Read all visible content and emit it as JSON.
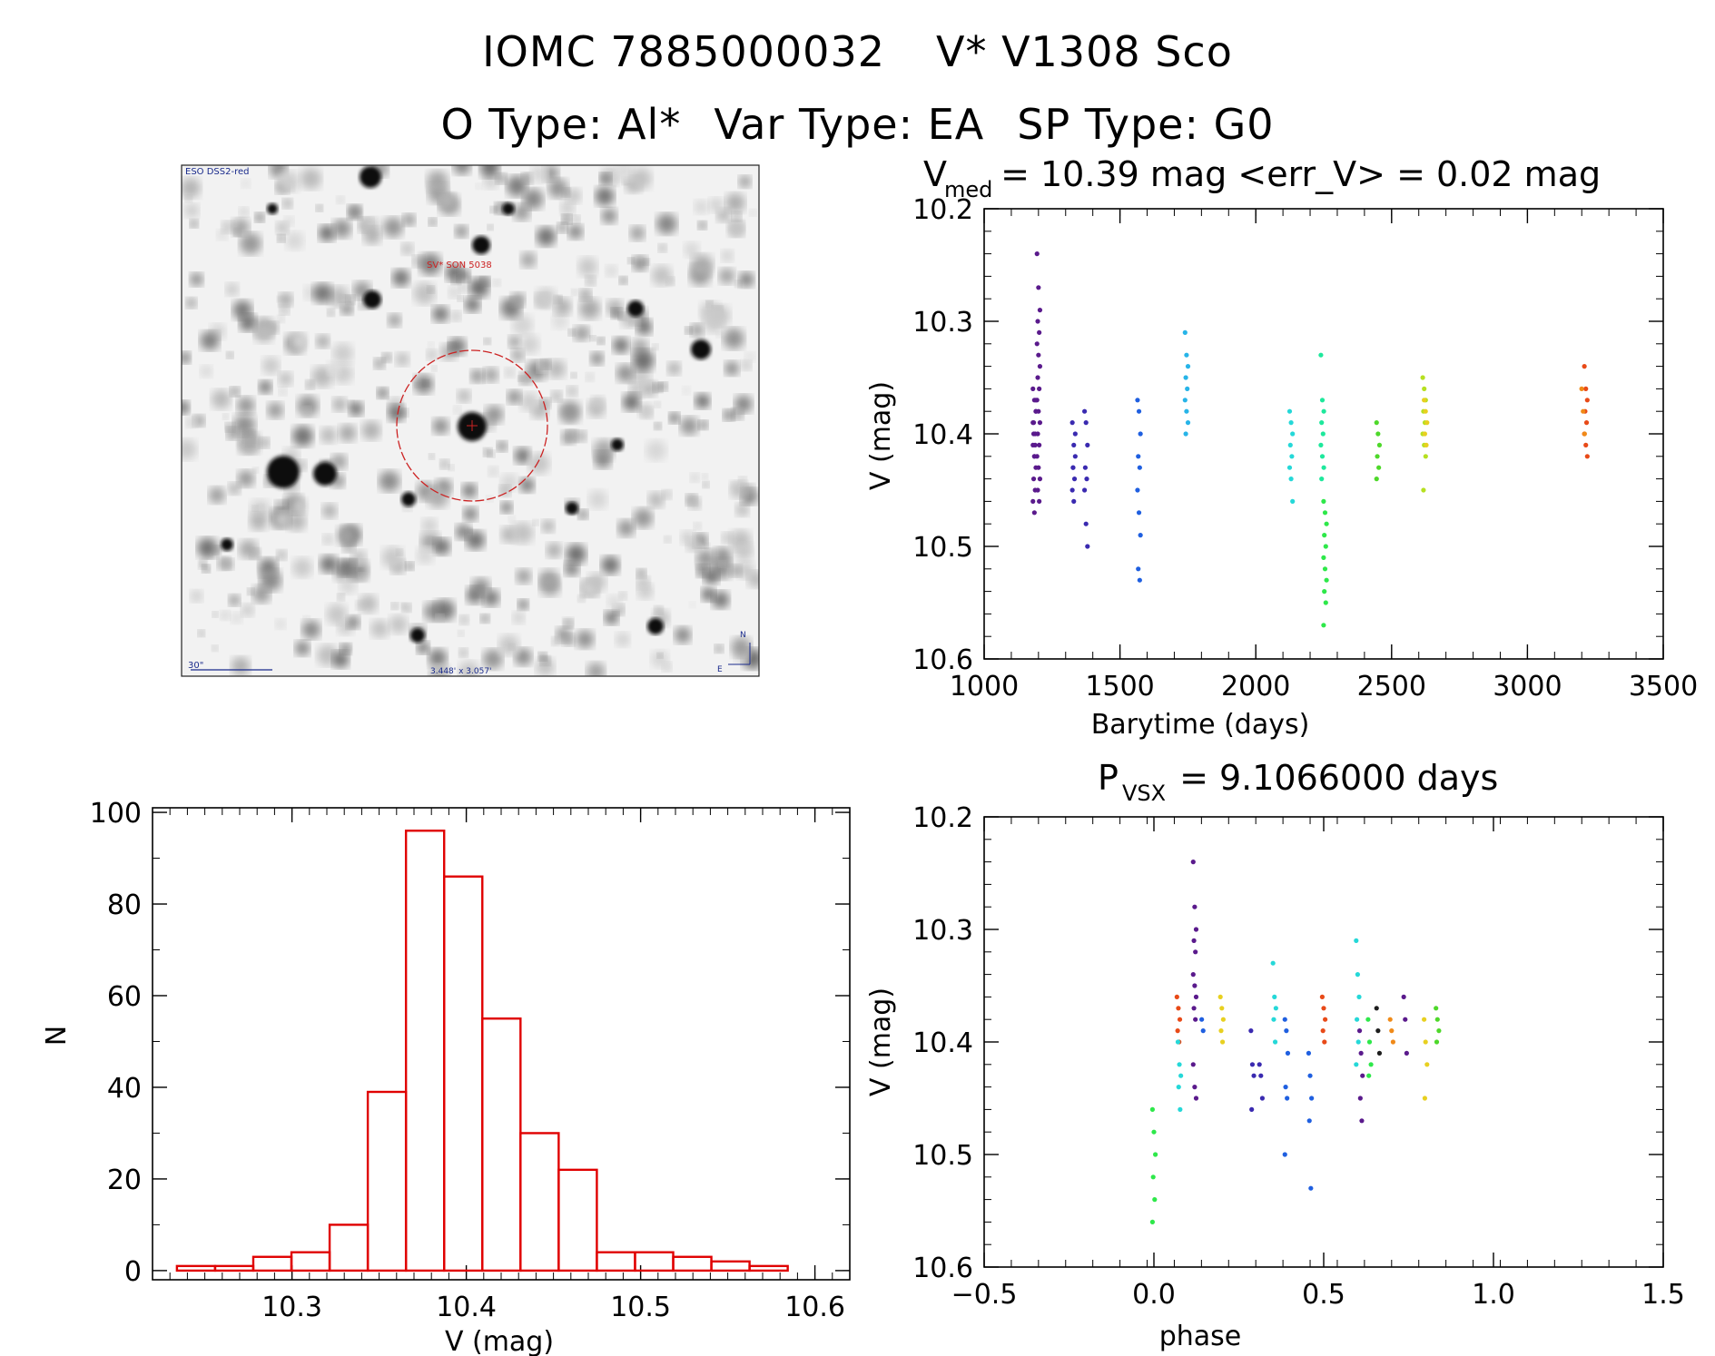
{
  "header": {
    "id": "IOMC 7885000032",
    "name": "V* V1308 Sco",
    "otype": "O Type: Al*",
    "vartype": "Var Type: EA",
    "sptype": "SP Type: G0"
  },
  "sky_image": {
    "survey_label": "ESO DSS2-red",
    "object_label": "SV* SON 5038",
    "scale_label": "30\"",
    "fov_label": "3.448' x 3.057'",
    "north_label": "N",
    "east_label": "E",
    "circle_color": "#cc2222"
  },
  "chart_data": [
    {
      "type": "scatter",
      "id": "lightcurve",
      "title_main": "V",
      "title_sub": "med",
      "title_rest": " = 10.39 mag <err_V> = 0.02 mag",
      "xlabel": "Barytime (days)",
      "ylabel": "V (mag)",
      "xlim": [
        1000,
        3500
      ],
      "ylim": [
        10.2,
        10.6
      ],
      "y_inverted": true,
      "xticks": [
        1000,
        1500,
        2000,
        2500,
        3000,
        3500
      ],
      "yticks": [
        10.2,
        10.3,
        10.4,
        10.5,
        10.6
      ],
      "xtick_labels": [
        "1000",
        "1500",
        "2000",
        "2500",
        "3000",
        "3500"
      ],
      "ytick_labels": [
        "10.2",
        "10.3",
        "10.4",
        "10.5",
        "10.6"
      ],
      "series": [
        {
          "color": "#5a1a8c",
          "x": 1185,
          "y": [
            10.36,
            10.37,
            10.38,
            10.39,
            10.4,
            10.41,
            10.42,
            10.43,
            10.44,
            10.45,
            10.46,
            10.47,
            10.38,
            10.4,
            10.41,
            10.39,
            10.42,
            10.37
          ]
        },
        {
          "color": "#5a1a8c",
          "x": 1200,
          "y": [
            10.24,
            10.27,
            10.29,
            10.3,
            10.31,
            10.32,
            10.33,
            10.34,
            10.35,
            10.36,
            10.37,
            10.38,
            10.39,
            10.4,
            10.41,
            10.42,
            10.43,
            10.44,
            10.45,
            10.46
          ]
        },
        {
          "color": "#3a2ab0",
          "x": 1330,
          "y": [
            10.39,
            10.41,
            10.42,
            10.43,
            10.44,
            10.45,
            10.46,
            10.4,
            10.43
          ]
        },
        {
          "color": "#3a2ab0",
          "x": 1375,
          "y": [
            10.38,
            10.39,
            10.41,
            10.43,
            10.44,
            10.45,
            10.48,
            10.5
          ]
        },
        {
          "color": "#1f5fe0",
          "x": 1570,
          "y": [
            10.37,
            10.38,
            10.4,
            10.42,
            10.43,
            10.45,
            10.47,
            10.49,
            10.52,
            10.53
          ]
        },
        {
          "color": "#27b4e8",
          "x": 1745,
          "y": [
            10.31,
            10.33,
            10.34,
            10.35,
            10.36,
            10.37,
            10.38,
            10.39,
            10.4
          ]
        },
        {
          "color": "#25d8d8",
          "x": 2130,
          "y": [
            10.38,
            10.39,
            10.4,
            10.41,
            10.42,
            10.43,
            10.44,
            10.46
          ]
        },
        {
          "color": "#1ee89c",
          "x": 2245,
          "y": [
            10.33,
            10.37,
            10.38,
            10.39,
            10.4,
            10.41,
            10.42,
            10.43,
            10.44
          ]
        },
        {
          "color": "#2ee84a",
          "x": 2255,
          "y": [
            10.46,
            10.47,
            10.48,
            10.49,
            10.5,
            10.51,
            10.52,
            10.53,
            10.54,
            10.55,
            10.57
          ]
        },
        {
          "color": "#4ed82a",
          "x": 2450,
          "y": [
            10.39,
            10.4,
            10.41,
            10.42,
            10.43,
            10.44
          ]
        },
        {
          "color": "#b6e020",
          "x": 2620,
          "y": [
            10.35,
            10.36,
            10.37,
            10.38,
            10.39,
            10.4,
            10.41,
            10.42,
            10.45
          ]
        },
        {
          "color": "#e8d020",
          "x": 2625,
          "y": [
            10.37,
            10.38,
            10.39,
            10.4,
            10.41
          ]
        },
        {
          "color": "#e84a18",
          "x": 3215,
          "y": [
            10.34,
            10.36,
            10.37,
            10.38,
            10.39,
            10.4,
            10.41,
            10.42
          ]
        },
        {
          "color": "#f08a18",
          "x": 3205,
          "y": [
            10.36,
            10.38,
            10.4
          ]
        }
      ]
    },
    {
      "type": "bar",
      "id": "histogram",
      "xlabel": "V (mag)",
      "ylabel": "N",
      "xlim": [
        10.22,
        10.62
      ],
      "ylim": [
        -2,
        101
      ],
      "xticks": [
        10.3,
        10.4,
        10.5,
        10.6
      ],
      "yticks": [
        0,
        20,
        40,
        60,
        80,
        100
      ],
      "xtick_labels": [
        "10.3",
        "10.4",
        "10.5",
        "10.6"
      ],
      "ytick_labels": [
        "0",
        "20",
        "40",
        "60",
        "80",
        "100"
      ],
      "bar_color": "#e00000",
      "bin_width": 0.0219,
      "bin_start": 10.234,
      "values": [
        1,
        1,
        3,
        4,
        10,
        39,
        96,
        86,
        55,
        30,
        22,
        4,
        4,
        3,
        2,
        1
      ]
    },
    {
      "type": "scatter",
      "id": "phased",
      "title_main": "P",
      "title_sub": "VSX",
      "title_rest": " = 9.1066000 days",
      "xlabel": "phase",
      "ylabel": "V (mag)",
      "xlim": [
        -0.5,
        1.5
      ],
      "ylim": [
        10.2,
        10.6
      ],
      "y_inverted": true,
      "xticks": [
        -0.5,
        0.0,
        0.5,
        1.0,
        1.5
      ],
      "yticks": [
        10.2,
        10.3,
        10.4,
        10.5,
        10.6
      ],
      "xtick_labels": [
        "−0.5",
        "0.0",
        "0.5",
        "1.0",
        "1.5"
      ],
      "ytick_labels": [
        "10.2",
        "10.3",
        "10.4",
        "10.5",
        "10.6"
      ],
      "series": [
        {
          "color": "#e84a18",
          "x": 0.072,
          "y": [
            10.36,
            10.37,
            10.38,
            10.39,
            10.4
          ]
        },
        {
          "color": "#25d8d8",
          "x": 0.075,
          "y": [
            10.4,
            10.42,
            10.43,
            10.44,
            10.46
          ]
        },
        {
          "color": "#5a1a8c",
          "x": 0.12,
          "y": [
            10.24,
            10.28,
            10.3,
            10.31,
            10.32,
            10.34,
            10.35,
            10.36,
            10.37,
            10.38,
            10.42,
            10.44,
            10.45
          ]
        },
        {
          "color": "#1f5fe0",
          "x": 0.145,
          "y": [
            10.38,
            10.39
          ]
        },
        {
          "color": "#e8d020",
          "x": 0.2,
          "y": [
            10.36,
            10.37,
            10.38,
            10.39,
            10.4
          ]
        },
        {
          "color": "#3a2ab0",
          "x": 0.29,
          "y": [
            10.39,
            10.42,
            10.43,
            10.46
          ]
        },
        {
          "color": "#3a2ab0",
          "x": 0.315,
          "y": [
            10.42,
            10.43,
            10.45
          ]
        },
        {
          "color": "#25d8d8",
          "x": 0.355,
          "y": [
            10.33,
            10.36,
            10.37,
            10.38,
            10.4
          ]
        },
        {
          "color": "#1f5fe0",
          "x": 0.39,
          "y": [
            10.38,
            10.39,
            10.41,
            10.44,
            10.45,
            10.5
          ]
        },
        {
          "color": "#1f5fe0",
          "x": 0.46,
          "y": [
            10.41,
            10.43,
            10.45,
            10.47,
            10.53
          ]
        },
        {
          "color": "#e84a18",
          "x": 0.5,
          "y": [
            10.36,
            10.37,
            10.38,
            10.39,
            10.4
          ]
        },
        {
          "color": "#2ee84a",
          "x": 0.0,
          "y": [
            10.46,
            10.48,
            10.5,
            10.52,
            10.54,
            10.56
          ]
        },
        {
          "color": "#25d8d8",
          "x": 0.6,
          "y": [
            10.31,
            10.34,
            10.36,
            10.38,
            10.4,
            10.42
          ]
        },
        {
          "color": "#5a1a8c",
          "x": 0.61,
          "y": [
            10.39,
            10.41,
            10.43,
            10.45,
            10.47
          ]
        },
        {
          "color": "#2ee84a",
          "x": 0.635,
          "y": [
            10.38,
            10.4,
            10.42,
            10.43
          ]
        },
        {
          "color": "#1e1e1e",
          "x": 0.66,
          "y": [
            10.37,
            10.39,
            10.41
          ]
        },
        {
          "color": "#f08a18",
          "x": 0.7,
          "y": [
            10.38,
            10.39,
            10.4
          ]
        },
        {
          "color": "#5a1a8c",
          "x": 0.74,
          "y": [
            10.36,
            10.38,
            10.41
          ]
        },
        {
          "color": "#e8d020",
          "x": 0.8,
          "y": [
            10.38,
            10.4,
            10.42,
            10.45
          ]
        },
        {
          "color": "#4ed82a",
          "x": 0.835,
          "y": [
            10.37,
            10.38,
            10.39,
            10.4
          ]
        }
      ]
    }
  ]
}
